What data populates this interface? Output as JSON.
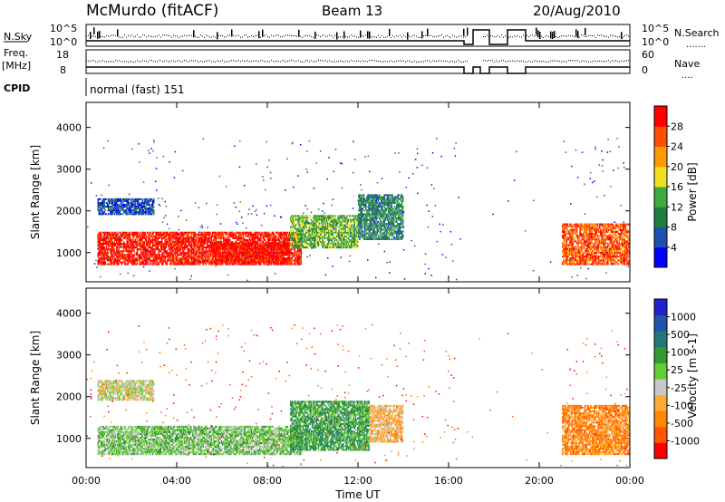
{
  "header": {
    "station": "McMurdo (fitACF)",
    "beam": "Beam 13",
    "date": "20/Aug/2010"
  },
  "strip_labels": {
    "nsky": "N.Sky",
    "nsky_top": "10^5",
    "nsky_bottom": "10^0",
    "nsearch": "N.Search",
    "nsearch_top": "10^5",
    "nsearch_bottom": "10^0",
    "freq_line1": "Freq.",
    "freq_line2": "[MHz]",
    "freq_top": "18",
    "freq_bottom": "8",
    "nave": "Nave",
    "nave_top": "60",
    "nave_bottom": "0",
    "cpid": "CPID",
    "cpid_value": "normal (fast) 151"
  },
  "colors": {
    "power_scale": [
      "#0000ff",
      "#1f4fb0",
      "#1f7f3f",
      "#3faa3f",
      "#f0e020",
      "#ff9900",
      "#ff5000",
      "#ff0000"
    ],
    "velocity_scale": [
      "#ff0000",
      "#ff5500",
      "#ff8800",
      "#ffaa33",
      "#c8c8c8",
      "#66cc33",
      "#339933",
      "#227777",
      "#2255aa",
      "#2222cc"
    ]
  },
  "chart_data": [
    {
      "type": "heatmap",
      "name": "power",
      "ylabel": "Slant Range [km]",
      "yticks": [
        "1000",
        "2000",
        "3000",
        "4000"
      ],
      "ylim": [
        300,
        4600
      ],
      "xlim": [
        "00:00",
        "24:00"
      ],
      "colorbar_label": "Power [dB]",
      "colorbar_ticks": [
        "4",
        "8",
        "12",
        "16",
        "20",
        "24",
        "28"
      ],
      "colorbar_range": [
        0,
        32
      ],
      "regions": [
        {
          "t0": 0.5,
          "t1": 9.5,
          "r0": 700,
          "r1": 1500,
          "level": 28
        },
        {
          "t0": 5.5,
          "t1": 9.0,
          "r0": 750,
          "r1": 1250,
          "level": 30
        },
        {
          "t0": 9.0,
          "t1": 12.0,
          "r0": 1100,
          "r1": 1900,
          "level": 14
        },
        {
          "t0": 12.0,
          "t1": 14.0,
          "r0": 1300,
          "r1": 2400,
          "level": 9
        },
        {
          "t0": 21.0,
          "t1": 24.0,
          "r0": 700,
          "r1": 1700,
          "level": 24
        },
        {
          "t0": 0.5,
          "t1": 3.0,
          "r0": 1900,
          "r1": 2300,
          "level": 6
        }
      ]
    },
    {
      "type": "heatmap",
      "name": "velocity",
      "ylabel": "Slant Range [km]",
      "yticks": [
        "1000",
        "2000",
        "3000",
        "4000"
      ],
      "ylim": [
        300,
        4600
      ],
      "xlim": [
        "00:00",
        "24:00"
      ],
      "colorbar_label": "Velocity [m s-1]",
      "colorbar_ticks": [
        "-1000",
        "-500",
        "-100",
        "-25",
        "25",
        "100",
        "500",
        "1000"
      ],
      "colorbar_range": [
        -1200,
        1200
      ],
      "regions": [
        {
          "t0": 0.5,
          "t1": 9.5,
          "r0": 600,
          "r1": 1300,
          "level": 80
        },
        {
          "t0": 9.0,
          "t1": 12.5,
          "r0": 700,
          "r1": 1900,
          "level": 120
        },
        {
          "t0": 12.5,
          "t1": 14.0,
          "r0": 900,
          "r1": 1800,
          "level": -80
        },
        {
          "t0": 21.0,
          "t1": 24.0,
          "r0": 600,
          "r1": 1800,
          "level": -150
        },
        {
          "t0": 0.5,
          "t1": 3.0,
          "r0": 1900,
          "r1": 2400,
          "level": 10
        }
      ]
    }
  ],
  "x_axis": {
    "label": "Time UT",
    "ticks": [
      "00:00",
      "04:00",
      "08:00",
      "12:00",
      "16:00",
      "20:00",
      "00:00"
    ]
  }
}
